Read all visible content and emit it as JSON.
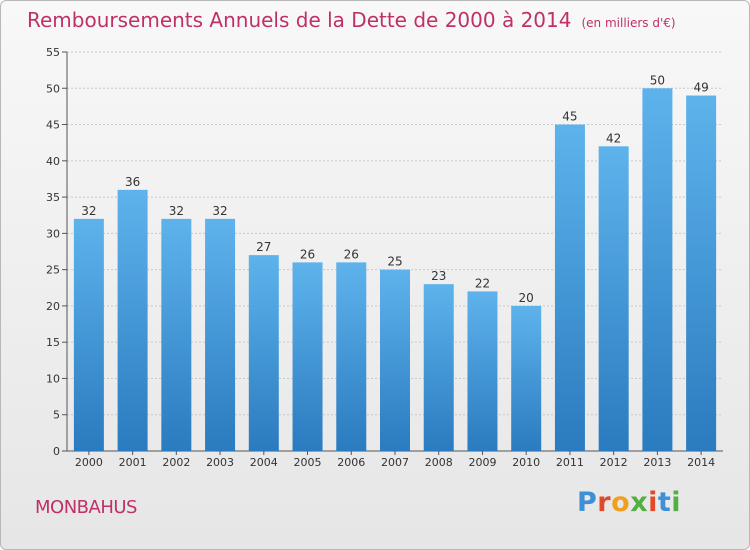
{
  "header": {
    "title": "Remboursements Annuels de la Dette de 2000 à 2014",
    "unit": "(en milliers d'€)"
  },
  "footer": {
    "commune": "MONBAHUS",
    "logo": "Proxiti",
    "logo_colors": [
      "#3d8fd6",
      "#e04a2a",
      "#f0a020",
      "#50b040",
      "#e04a2a",
      "#3d8fd6",
      "#50b040"
    ]
  },
  "colors": {
    "bar_top": "#5eb3ec",
    "bar_bottom": "#2a7bbf",
    "title": "#c03068",
    "grid": "#c8c8c8"
  },
  "chart_data": {
    "type": "bar",
    "title": "Remboursements Annuels de la Dette de 2000 à 2014",
    "unit": "(en milliers d'€)",
    "categories": [
      "2000",
      "2001",
      "2002",
      "2003",
      "2004",
      "2005",
      "2006",
      "2007",
      "2008",
      "2009",
      "2010",
      "2011",
      "2012",
      "2013",
      "2014"
    ],
    "values": [
      32,
      36,
      32,
      32,
      27,
      26,
      26,
      25,
      23,
      22,
      20,
      45,
      42,
      50,
      49
    ],
    "ylim": [
      0,
      55
    ],
    "yticks": [
      0,
      5,
      10,
      15,
      20,
      25,
      30,
      35,
      40,
      45,
      50,
      55
    ],
    "grid": true,
    "legend": "none"
  }
}
